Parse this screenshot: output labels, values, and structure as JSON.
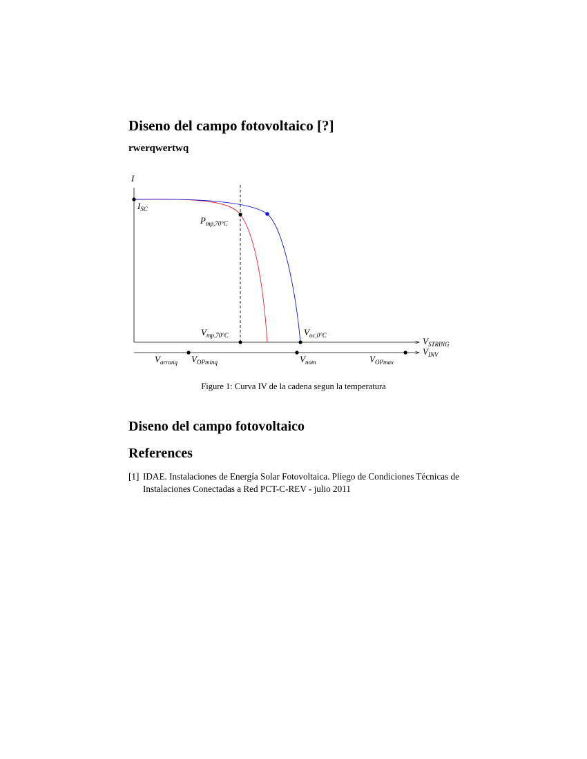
{
  "section1_title": "Diseno del campo fotovoltaico [?]",
  "subsection_title": "rwerqwertwq",
  "figure": {
    "caption": "Figure 1: Curva IV de la cadena segun la temperatura",
    "labels": {
      "i_axis": {
        "base": "I",
        "sub": ""
      },
      "isc": {
        "base": "I",
        "sub": "SC"
      },
      "pmp70": {
        "base": "P",
        "sub": "mp,70°C"
      },
      "vmp70": {
        "base": "V",
        "sub": "mp,70°C"
      },
      "voc0": {
        "base": "V",
        "sub": "oc,0°C"
      },
      "vstring": {
        "base": "V",
        "sub": "STRING"
      },
      "vinv": {
        "base": "V",
        "sub": "INV"
      },
      "varranq": {
        "base": "V",
        "sub": "arranq"
      },
      "vopminq": {
        "base": "V",
        "sub": "OPminq"
      },
      "vnom": {
        "base": "V",
        "sub": "nom"
      },
      "vopmax": {
        "base": "V",
        "sub": "OPmax"
      }
    },
    "colors": {
      "hot_curve": "#e8202a",
      "cold_curve": "#1414e0",
      "axes": "#000000"
    }
  },
  "section2_title": "Diseno del campo fotovoltaico",
  "references_title": "References",
  "references": [
    {
      "num": "[1]",
      "text": "IDAE. Instalaciones de Energía Solar Fotovoltaica. Pliego de Condiciones Técnicas de Instalaciones Conectadas a Red PCT-C-REV - julio 2011"
    }
  ]
}
